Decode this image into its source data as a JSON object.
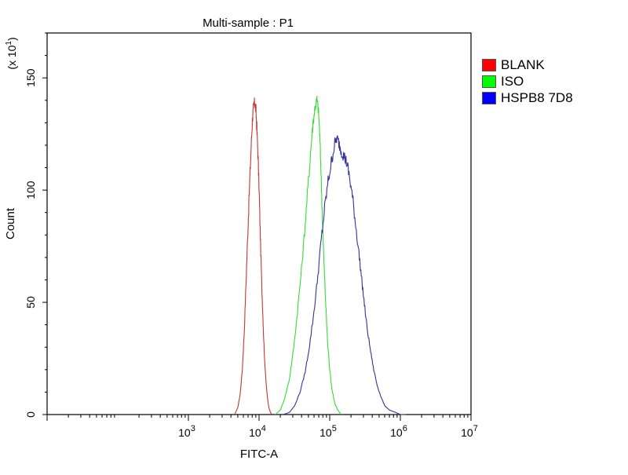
{
  "chart_data": {
    "type": "line",
    "title": "Multi-sample : P1",
    "xlabel": "FITC-A",
    "ylabel": "Count",
    "y_multiplier_label": "(x 10^1)",
    "x_scale": "log",
    "xlim": [
      10,
      10000000
    ],
    "ylim": [
      0,
      170
    ],
    "x_ticks": [
      {
        "value": 1000,
        "base": "10",
        "exp": "3"
      },
      {
        "value": 10000,
        "base": "10",
        "exp": "4"
      },
      {
        "value": 100000,
        "base": "10",
        "exp": "5"
      },
      {
        "value": 1000000,
        "base": "10",
        "exp": "6"
      },
      {
        "value": 10000000,
        "base": "10",
        "exp": "7"
      }
    ],
    "y_ticks": [
      {
        "value": 0,
        "label": "0"
      },
      {
        "value": 50,
        "label": "50"
      },
      {
        "value": 100,
        "label": "100"
      },
      {
        "value": 150,
        "label": "150"
      }
    ],
    "grid": false,
    "legend_position": "right",
    "series": [
      {
        "name": "BLANK",
        "color": "#cc3333",
        "swatch": "#ff0000",
        "points": [
          [
            4500,
            0
          ],
          [
            5000,
            3
          ],
          [
            5400,
            9
          ],
          [
            5800,
            20
          ],
          [
            6200,
            38
          ],
          [
            6600,
            62
          ],
          [
            7000,
            85
          ],
          [
            7400,
            105
          ],
          [
            7800,
            122
          ],
          [
            8100,
            133
          ],
          [
            8400,
            137
          ],
          [
            8700,
            139
          ],
          [
            9000,
            136
          ],
          [
            9300,
            128
          ],
          [
            9700,
            114
          ],
          [
            10100,
            96
          ],
          [
            10500,
            76
          ],
          [
            11000,
            55
          ],
          [
            11500,
            38
          ],
          [
            12000,
            24
          ],
          [
            12600,
            14
          ],
          [
            13200,
            7
          ],
          [
            13800,
            3
          ],
          [
            14500,
            1
          ],
          [
            15200,
            0
          ]
        ]
      },
      {
        "name": "ISO",
        "color": "#33dd33",
        "swatch": "#00ff00",
        "points": [
          [
            17000,
            0
          ],
          [
            20000,
            2
          ],
          [
            23000,
            7
          ],
          [
            27000,
            16
          ],
          [
            31000,
            30
          ],
          [
            35000,
            46
          ],
          [
            40000,
            65
          ],
          [
            45000,
            85
          ],
          [
            50000,
            104
          ],
          [
            54000,
            118
          ],
          [
            58000,
            130
          ],
          [
            62000,
            137
          ],
          [
            66000,
            140
          ],
          [
            69000,
            136
          ],
          [
            72000,
            126
          ],
          [
            75000,
            110
          ],
          [
            78000,
            92
          ],
          [
            82000,
            72
          ],
          [
            87000,
            52
          ],
          [
            93000,
            33
          ],
          [
            100000,
            20
          ],
          [
            108000,
            11
          ],
          [
            118000,
            5
          ],
          [
            130000,
            2
          ],
          [
            145000,
            0
          ]
        ]
      },
      {
        "name": "HSPB8 7D8",
        "color": "#333399",
        "swatch": "#0000ff",
        "points": [
          [
            22000,
            0
          ],
          [
            27000,
            1
          ],
          [
            32000,
            4
          ],
          [
            38000,
            10
          ],
          [
            45000,
            19
          ],
          [
            52000,
            31
          ],
          [
            60000,
            46
          ],
          [
            68000,
            62
          ],
          [
            76000,
            78
          ],
          [
            85000,
            92
          ],
          [
            95000,
            104
          ],
          [
            105000,
            112
          ],
          [
            115000,
            119
          ],
          [
            125000,
            123
          ],
          [
            135000,
            121
          ],
          [
            145000,
            118
          ],
          [
            160000,
            115
          ],
          [
            175000,
            112
          ],
          [
            190000,
            106
          ],
          [
            210000,
            97
          ],
          [
            230000,
            86
          ],
          [
            255000,
            74
          ],
          [
            280000,
            62
          ],
          [
            310000,
            49
          ],
          [
            340000,
            38
          ],
          [
            380000,
            28
          ],
          [
            420000,
            20
          ],
          [
            470000,
            13
          ],
          [
            530000,
            8
          ],
          [
            600000,
            4
          ],
          [
            700000,
            2
          ],
          [
            850000,
            1
          ],
          [
            1000000,
            0
          ],
          [
            1200000,
            0
          ]
        ]
      }
    ]
  }
}
